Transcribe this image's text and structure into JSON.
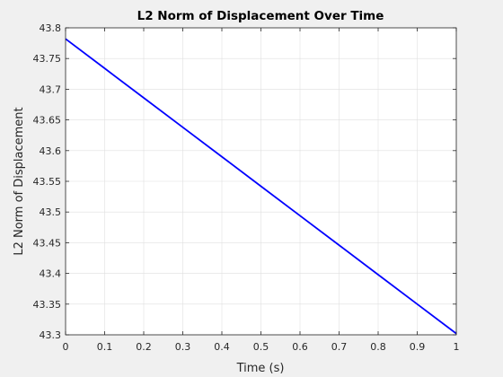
{
  "chart_data": {
    "type": "line",
    "title": "L2 Norm of Displacement Over Time",
    "xlabel": "Time (s)",
    "ylabel": "L2 Norm of Displacement",
    "xlim": [
      0,
      1
    ],
    "ylim": [
      43.3,
      43.8
    ],
    "grid": true,
    "x_ticks": [
      0,
      0.1,
      0.2,
      0.3,
      0.4,
      0.5,
      0.6,
      0.7,
      0.8,
      0.9,
      1
    ],
    "x_tick_labels": [
      "0",
      "0.1",
      "0.2",
      "0.3",
      "0.4",
      "0.5",
      "0.6",
      "0.7",
      "0.8",
      "0.9",
      "1"
    ],
    "y_ticks": [
      43.3,
      43.35,
      43.4,
      43.45,
      43.5,
      43.55,
      43.6,
      43.65,
      43.7,
      43.75,
      43.8
    ],
    "y_tick_labels": [
      "43.3",
      "43.35",
      "43.4",
      "43.45",
      "43.5",
      "43.55",
      "43.6",
      "43.65",
      "43.7",
      "43.75",
      "43.8"
    ],
    "series": [
      {
        "color": "#0000ff",
        "x": [
          0,
          0.1,
          0.2,
          0.3,
          0.4,
          0.5,
          0.6,
          0.7,
          0.8,
          0.9,
          1
        ],
        "y": [
          43.782,
          43.734,
          43.686,
          43.638,
          43.59,
          43.542,
          43.494,
          43.446,
          43.398,
          43.35,
          43.302
        ]
      }
    ]
  }
}
